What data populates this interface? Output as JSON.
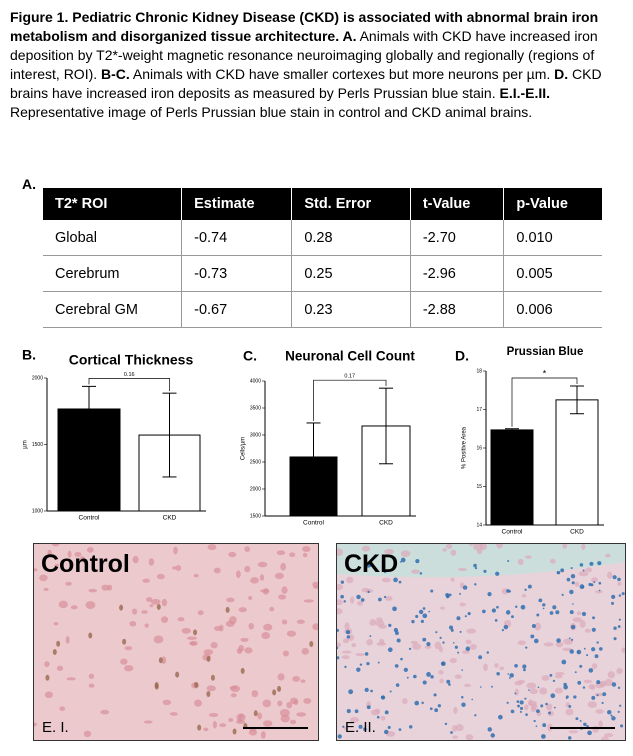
{
  "caption": {
    "segments": [
      {
        "text": "Figure 1. Pediatric Chronic Kidney Disease (CKD) is associated with abnormal brain iron metabolism and disorganized tissue architecture. A.",
        "bold": true
      },
      {
        "text": " Animals with CKD have increased iron deposition by T2*-weight magnetic resonance neuroimaging globally and regionally (regions of interest, ROI). ",
        "bold": false
      },
      {
        "text": "B-C.",
        "bold": true
      },
      {
        "text": " Animals with CKD have smaller cortexes but more neurons per µm. ",
        "bold": false
      },
      {
        "text": "D.",
        "bold": true
      },
      {
        "text": " CKD brains have increased iron deposits as measured by Perls Prussian blue stain. ",
        "bold": false
      },
      {
        "text": "E.I.-E.II.",
        "bold": true
      },
      {
        "text": " Representative image of Perls Prussian blue stain in control and CKD animal brains.",
        "bold": false
      }
    ]
  },
  "table": {
    "label": "A.",
    "header": [
      "T2* ROI",
      "Estimate",
      "Std. Error",
      "t-Value",
      "p-Value"
    ],
    "rows": [
      [
        "Global",
        "-0.74",
        "0.28",
        "-2.70",
        "0.010"
      ],
      [
        "Cerebrum",
        "-0.73",
        "0.25",
        "-2.96",
        "0.005"
      ],
      [
        "Cerebral GM",
        "-0.67",
        "0.23",
        "-2.88",
        "0.006"
      ]
    ]
  },
  "chart_data": [
    {
      "type": "bar",
      "label": "B.",
      "title": "Cortical Thickness",
      "ylabel": "µm",
      "categories": [
        "Control",
        "CKD"
      ],
      "values": [
        1767,
        1571
      ],
      "errors": [
        170,
        315
      ],
      "colors": [
        "#000000",
        "#ffffff"
      ],
      "ylim": [
        1000,
        2000
      ],
      "yticks": [
        1000,
        1500,
        2000
      ],
      "annotation": "0.16"
    },
    {
      "type": "bar",
      "label": "C.",
      "title": "Neuronal Cell Count",
      "ylabel": "Cells/µm",
      "categories": [
        "Control",
        "CKD"
      ],
      "values": [
        2593,
        3167
      ],
      "errors": [
        630,
        700
      ],
      "colors": [
        "#000000",
        "#ffffff"
      ],
      "ylim": [
        1500,
        4000
      ],
      "yticks": [
        1500,
        2000,
        2500,
        3000,
        3500,
        4000
      ],
      "annotation": "0.17"
    },
    {
      "type": "bar",
      "label": "D.",
      "title": "Prussian Blue",
      "ylabel": "% Positive Area",
      "categories": [
        "Control",
        "CKD"
      ],
      "values": [
        16.47,
        17.25
      ],
      "errors": [
        0.03,
        0.36
      ],
      "colors": [
        "#000000",
        "#ffffff"
      ],
      "ylim": [
        14,
        18
      ],
      "yticks": [
        14,
        15,
        16,
        17,
        18
      ],
      "annotation": "*"
    }
  ],
  "panels": [
    {
      "title": "Control",
      "label": "E. I."
    },
    {
      "title": "CKD",
      "label": "E. II."
    }
  ]
}
